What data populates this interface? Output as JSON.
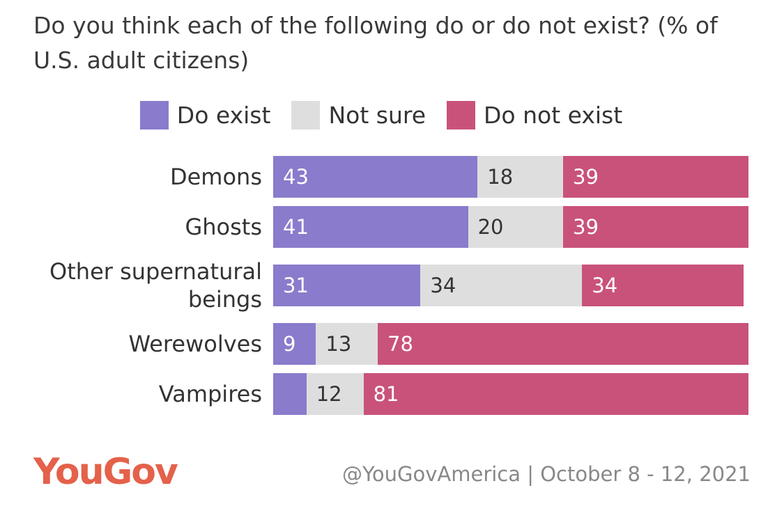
{
  "chart_data": {
    "type": "bar",
    "orientation": "horizontal",
    "stacked": true,
    "title": "Do you think each of the following do or do not exist? (% of U.S. adult citizens)",
    "categories": [
      "Demons",
      "Ghosts",
      "Other supernatural beings",
      "Werewolves",
      "Vampires"
    ],
    "series": [
      {
        "name": "Do exist",
        "color": "#8a7bcc",
        "values": [
          43,
          41,
          31,
          9,
          7
        ]
      },
      {
        "name": "Not sure",
        "color": "#dedede",
        "values": [
          18,
          20,
          34,
          13,
          12
        ]
      },
      {
        "name": "Do not exist",
        "color": "#c9527a",
        "values": [
          39,
          39,
          34,
          78,
          81
        ]
      }
    ],
    "logo": "YouGov",
    "source": "@YouGovAmerica | October 8 - 12, 2021"
  }
}
